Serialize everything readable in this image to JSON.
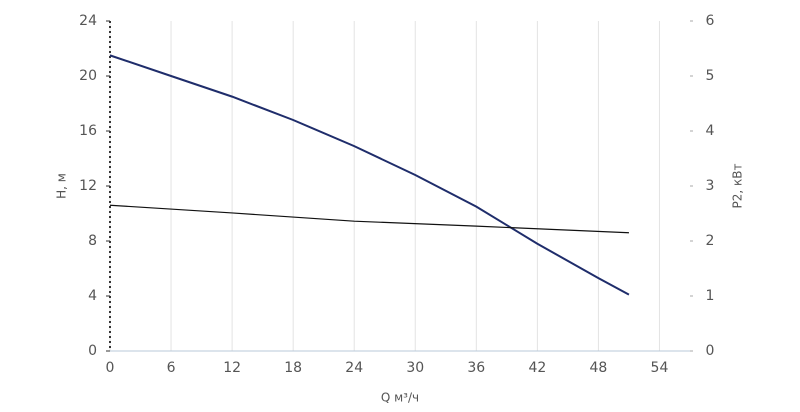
{
  "chart_data": {
    "type": "line",
    "xlabel": "Q м³/ч",
    "ylabel": "H, м",
    "y2label": "P2, кВт",
    "xlim": [
      0,
      57
    ],
    "xticks": [
      0,
      6,
      12,
      18,
      24,
      30,
      36,
      42,
      48,
      54
    ],
    "ylim": [
      0,
      24
    ],
    "yticks": [
      0,
      4,
      8,
      12,
      16,
      20,
      24
    ],
    "y2lim": [
      0,
      6
    ],
    "y2ticks": [
      0,
      1,
      2,
      3,
      4,
      5,
      6
    ],
    "grid": true,
    "series": [
      {
        "color": "#1f2d6b",
        "x": [
          0,
          6,
          12,
          18,
          24,
          30,
          36,
          42,
          48,
          51
        ],
        "values": [
          21.5,
          20.0,
          18.5,
          16.8,
          14.9,
          12.8,
          10.5,
          7.8,
          5.3,
          4.1
        ]
      },
      {
        "color": "#111111",
        "axis": "y2",
        "x": [
          0,
          12,
          24,
          36,
          51
        ],
        "values": [
          2.65,
          2.51,
          2.36,
          2.27,
          2.15
        ]
      }
    ]
  }
}
